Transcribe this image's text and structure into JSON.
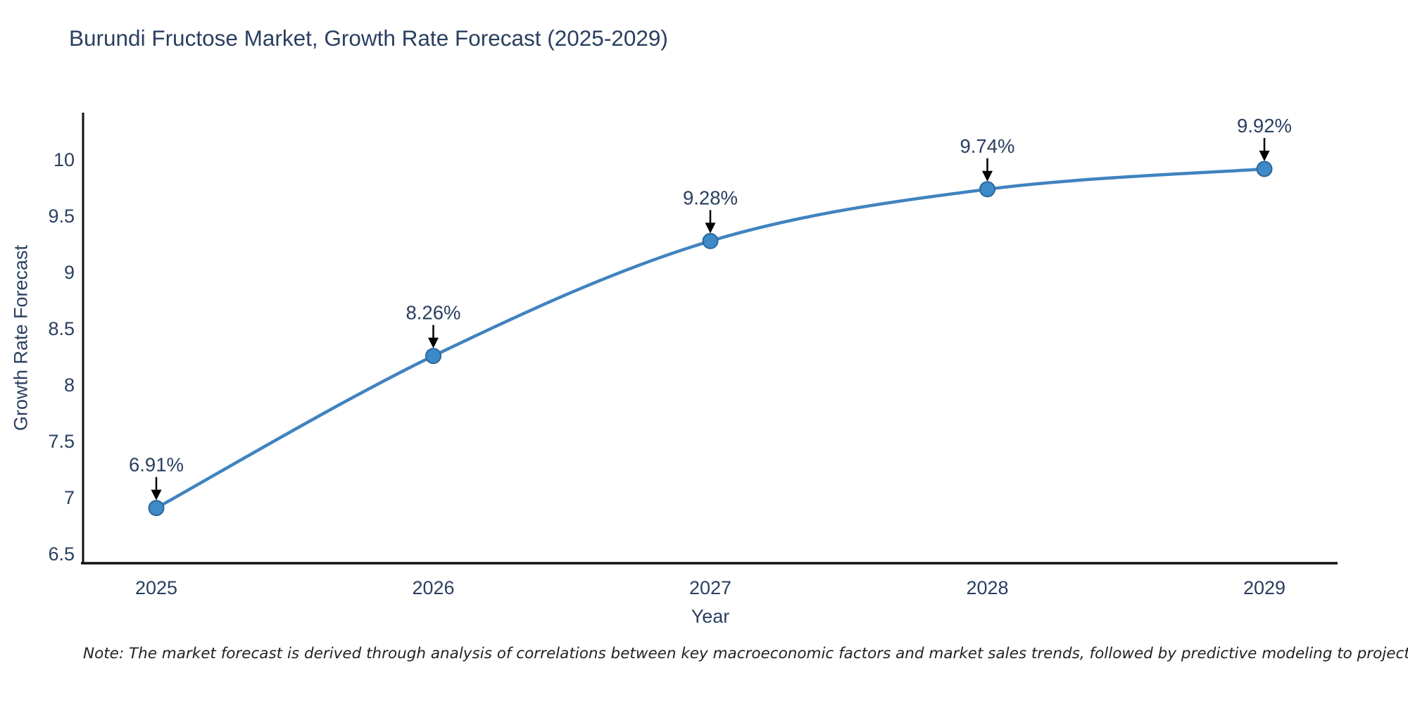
{
  "title": "Burundi Fructose Market, Growth Rate Forecast (2025-2029)",
  "note": "Note: The market forecast is derived through analysis of correlations between key macroeconomic factors and market sales trends, followed by predictive modeling to project future sales",
  "chart_data": {
    "type": "line",
    "categories": [
      "2025",
      "2026",
      "2027",
      "2028",
      "2029"
    ],
    "series": [
      {
        "name": "Growth Rate Forecast",
        "values": [
          6.91,
          8.26,
          9.28,
          9.74,
          9.92
        ]
      }
    ],
    "point_labels": [
      "6.91%",
      "8.26%",
      "9.28%",
      "9.74%",
      "9.92%"
    ],
    "title": "Burundi Fructose Market, Growth Rate Forecast (2025-2029)",
    "xlabel": "Year",
    "ylabel": "Growth Rate Forecast",
    "ylim": [
      6.42,
      10.42
    ],
    "yticks": [
      6.5,
      7,
      7.5,
      8,
      8.5,
      9,
      9.5,
      10
    ],
    "grid": false,
    "legend": "none",
    "line_shape": "spline",
    "line_color": "#4083bf",
    "marker_color": "#3d8ac9",
    "marker_edge_color": "#2c6799",
    "axis_color": "#111111",
    "text_color": "#2a3f5f",
    "annotation_arrow_color": "#000000"
  }
}
